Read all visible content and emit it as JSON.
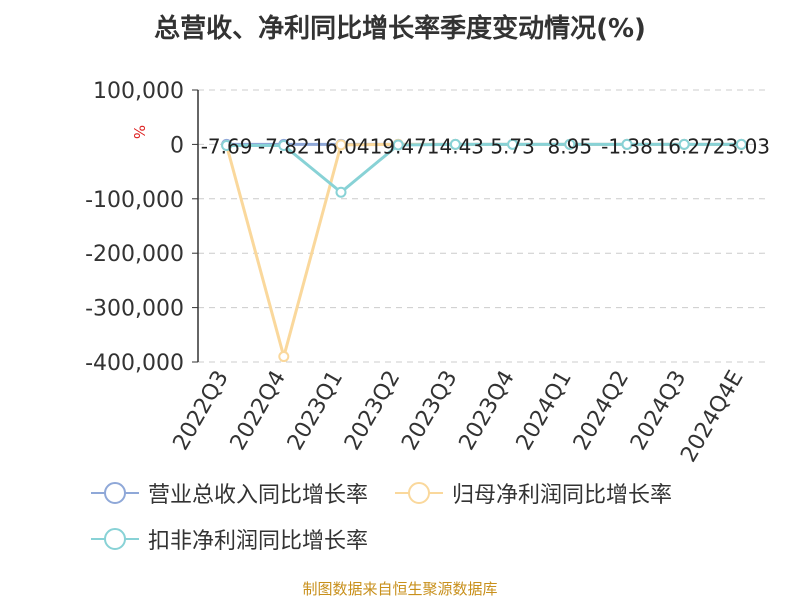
{
  "title": "总营收、净利同比增长率季度变动情况(%)",
  "source": "制图数据来自恒生聚源数据库",
  "chart_data": {
    "type": "line",
    "categories": [
      "2022Q3",
      "2022Q4",
      "2023Q1",
      "2023Q2",
      "2023Q3",
      "2023Q4",
      "2024Q1",
      "2024Q2",
      "2024Q3",
      "2024Q4E"
    ],
    "ylabel": "%",
    "ylim": [
      -400000,
      100000
    ],
    "yticks": [
      100000,
      0,
      -100000,
      -200000,
      -300000,
      -400000
    ],
    "ytick_labels": [
      "100,000",
      "0",
      "-100,000",
      "-200,000",
      "-300,000",
      "-400,000"
    ],
    "grid": true,
    "legend_position": "bottom-left",
    "data_label_series": 0,
    "series": [
      {
        "name": "营业总收入同比增长率",
        "color": "#8fa8d8",
        "values": [
          -7.69,
          -7.82,
          16.04,
          19.47,
          14.43,
          5.73,
          8.95,
          -1.38,
          16.27,
          23.03
        ],
        "labels": [
          "-7.69",
          "-7.82",
          "16.04",
          "19.47",
          "14.43",
          "5.73",
          "8.95",
          "-1.38",
          "16.27",
          "23.03"
        ]
      },
      {
        "name": "归母净利润同比增长率",
        "color": "#fad89c",
        "values": [
          -2000,
          -390000,
          -800,
          0,
          0,
          0,
          0,
          0,
          0,
          0
        ]
      },
      {
        "name": "扣非净利润同比增长率",
        "color": "#88d2d6",
        "values": [
          -2000,
          -2000,
          -88000,
          -1000,
          0,
          0,
          0,
          0,
          0,
          0
        ]
      }
    ]
  }
}
